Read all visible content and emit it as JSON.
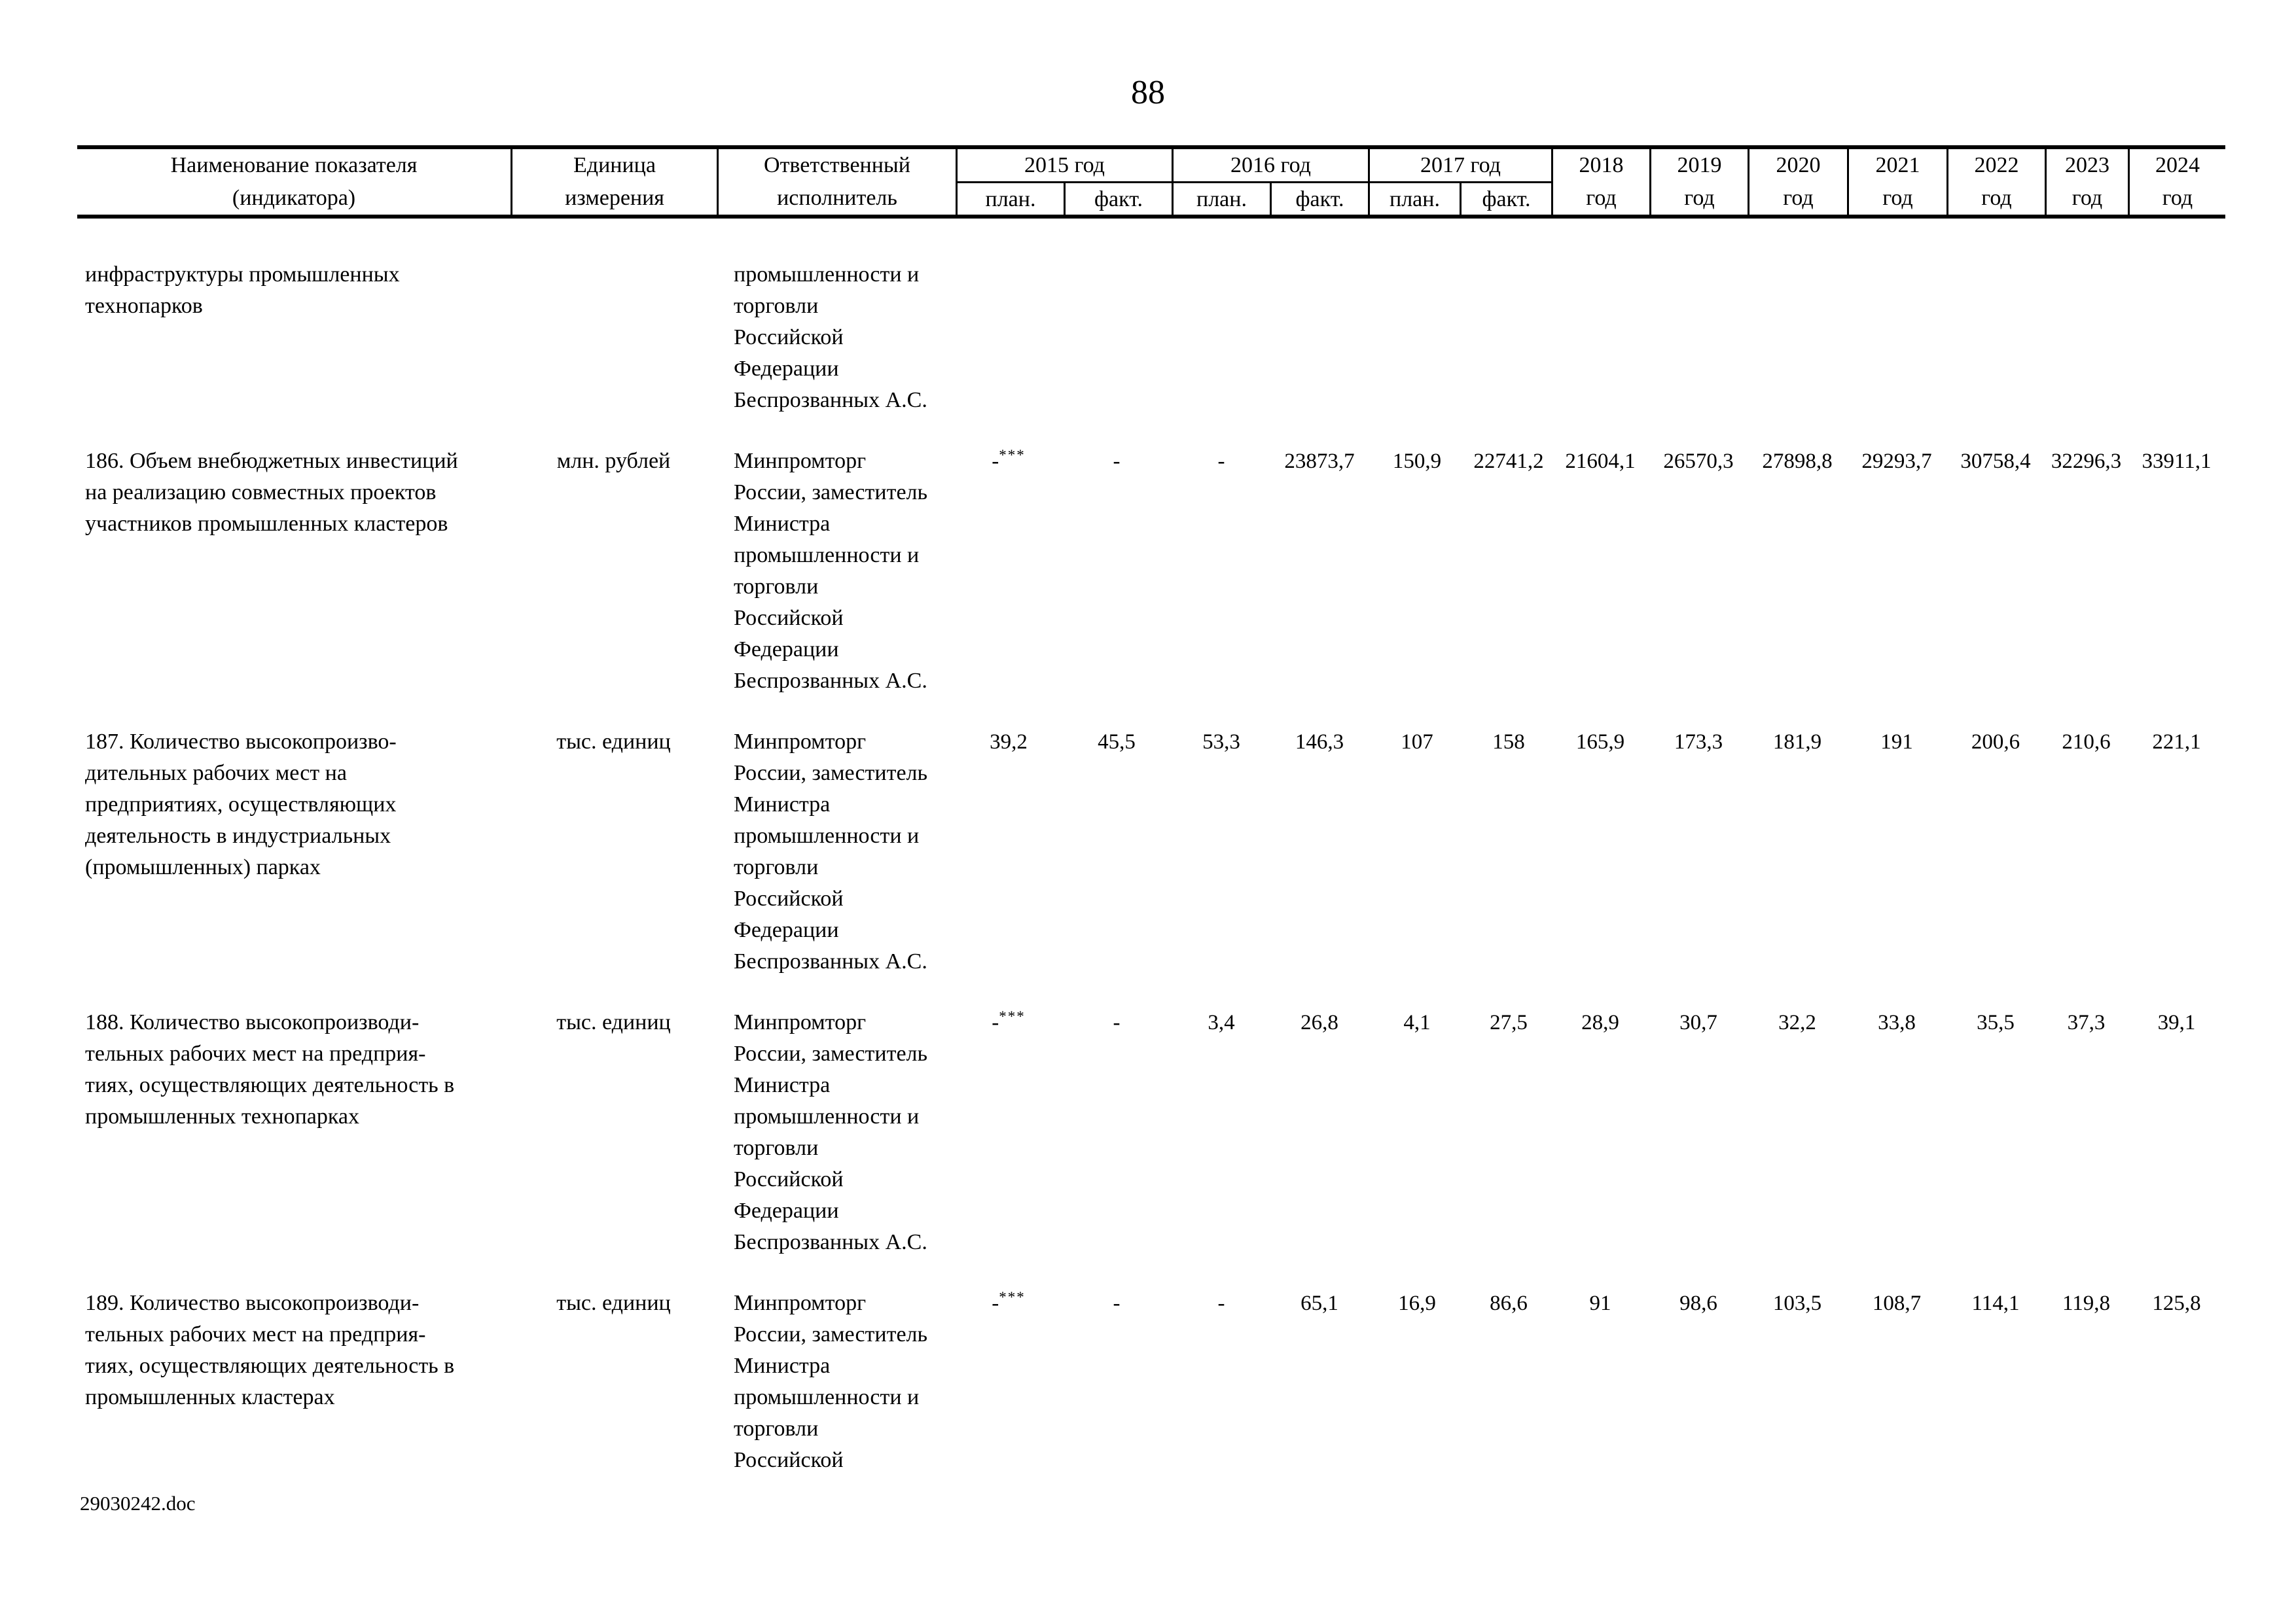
{
  "page": {
    "number": "88"
  },
  "footer": {
    "filename": "29030242.doc"
  },
  "header": {
    "name": "Наименование показателя\n(индикатора)",
    "unit": "Единица\nизмерения",
    "executor": "Ответственный\nисполнитель",
    "plan_label": "план.",
    "fact_label": "факт.",
    "year_groups": [
      "2015 год",
      "2016 год",
      "2017 год"
    ],
    "single_years": [
      "2018\nгод",
      "2019\nгод",
      "2020\nгод",
      "2021\nгод",
      "2022\nгод",
      "2023\nгод",
      "2024\nгод"
    ]
  },
  "rows": [
    {
      "name": "инфраструктуры промышленных\nтехнопарков",
      "unit": "",
      "executor": "промышленности и\nторговли\nРоссийской\nФедерации\nБеспрозванных А.С.",
      "values": []
    },
    {
      "name": "186. Объем внебюджетных инвестиций\nна реализацию совместных проектов\nучастников промышленных кластеров",
      "unit": "млн. рублей",
      "executor": "Минпромторг\nРоссии, заместитель\nМинистра\nпромышленности и\nторговли\nРоссийской\nФедерации\nБеспрозванных А.С.",
      "values": [
        {
          "t": "-",
          "sup": "***"
        },
        {
          "t": "-"
        },
        {
          "t": "-"
        },
        {
          "t": "23873,7"
        },
        {
          "t": "150,9"
        },
        {
          "t": "22741,2"
        },
        {
          "t": "21604,1"
        },
        {
          "t": "26570,3"
        },
        {
          "t": "27898,8"
        },
        {
          "t": "29293,7"
        },
        {
          "t": "30758,4"
        },
        {
          "t": "32296,3"
        },
        {
          "t": "33911,1"
        }
      ]
    },
    {
      "name": "187. Количество высокопроизво-\nдительных рабочих мест на\nпредприятиях, осуществляющих\nдеятельность в индустриальных\n(промышленных) парках",
      "unit": "тыс. единиц",
      "executor": "Минпромторг\nРоссии, заместитель\nМинистра\nпромышленности и\nторговли\nРоссийской\nФедерации\nБеспрозванных А.С.",
      "values": [
        {
          "t": "39,2"
        },
        {
          "t": "45,5"
        },
        {
          "t": "53,3"
        },
        {
          "t": "146,3"
        },
        {
          "t": "107"
        },
        {
          "t": "158"
        },
        {
          "t": "165,9"
        },
        {
          "t": "173,3"
        },
        {
          "t": "181,9"
        },
        {
          "t": "191"
        },
        {
          "t": "200,6"
        },
        {
          "t": "210,6"
        },
        {
          "t": "221,1"
        }
      ]
    },
    {
      "name": "188. Количество высокопроизводи-\nтельных рабочих мест на предприя-\nтиях, осуществляющих деятельность в\nпромышленных технопарках",
      "unit": "тыс. единиц",
      "executor": "Минпромторг\nРоссии, заместитель\nМинистра\nпромышленности и\nторговли\nРоссийской\nФедерации\nБеспрозванных А.С.",
      "values": [
        {
          "t": "-",
          "sup": "***"
        },
        {
          "t": "-"
        },
        {
          "t": "3,4"
        },
        {
          "t": "26,8"
        },
        {
          "t": "4,1"
        },
        {
          "t": "27,5"
        },
        {
          "t": "28,9"
        },
        {
          "t": "30,7"
        },
        {
          "t": "32,2"
        },
        {
          "t": "33,8"
        },
        {
          "t": "35,5"
        },
        {
          "t": "37,3"
        },
        {
          "t": "39,1"
        }
      ]
    },
    {
      "name": "189. Количество высокопроизводи-\nтельных рабочих мест на предприя-\nтиях, осуществляющих деятельность в\nпромышленных кластерах",
      "unit": "тыс. единиц",
      "executor": "Минпромторг\nРоссии, заместитель\nМинистра\nпромышленности и\nторговли\nРоссийской",
      "values": [
        {
          "t": "-",
          "sup": "***"
        },
        {
          "t": "-"
        },
        {
          "t": "-"
        },
        {
          "t": "65,1"
        },
        {
          "t": "16,9"
        },
        {
          "t": "86,6"
        },
        {
          "t": "91"
        },
        {
          "t": "98,6"
        },
        {
          "t": "103,5"
        },
        {
          "t": "108,7"
        },
        {
          "t": "114,1"
        },
        {
          "t": "119,8"
        },
        {
          "t": "125,8"
        }
      ]
    }
  ]
}
